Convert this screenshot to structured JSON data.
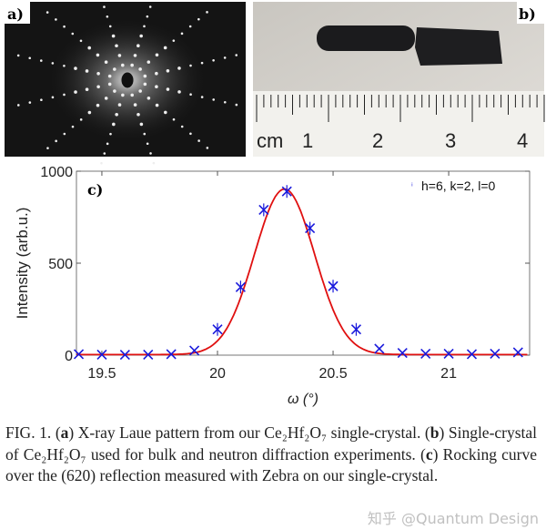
{
  "panels": {
    "a": {
      "label": "a)"
    },
    "b": {
      "label": "b)",
      "ruler_labels": [
        "cm",
        "1",
        "2",
        "3",
        "4"
      ]
    },
    "c": {
      "label": "c)"
    }
  },
  "chart_data": {
    "type": "scatter",
    "xlabel": "ω (°)",
    "ylabel": "Intensity (arb.u.)",
    "xlim": [
      19.39,
      21.35
    ],
    "ylim": [
      0,
      1000
    ],
    "xticks": [
      19.5,
      20,
      20.5,
      21
    ],
    "xtick_labels": [
      "19.5",
      "20",
      "20.5",
      "21"
    ],
    "yticks": [
      0,
      500,
      1000
    ],
    "ytick_labels": [
      "0",
      "500",
      "1000"
    ],
    "legend": {
      "placement": "top-right",
      "entries": [
        "h=6, k=2, l=0"
      ]
    },
    "series": [
      {
        "name": "h=6, k=2, l=0",
        "marker": "x",
        "color": "#1a1adc",
        "x": [
          19.4,
          19.5,
          19.6,
          19.7,
          19.8,
          19.9,
          20.0,
          20.1,
          20.2,
          20.3,
          20.4,
          20.5,
          20.6,
          20.7,
          20.8,
          20.9,
          21.0,
          21.1,
          21.2,
          21.3
        ],
        "y": [
          5,
          3,
          2,
          3,
          5,
          25,
          140,
          370,
          790,
          890,
          690,
          375,
          140,
          35,
          12,
          8,
          8,
          5,
          8,
          15
        ]
      },
      {
        "type": "fit",
        "color": "#e01010",
        "model": "gaussian",
        "center": 20.29,
        "amplitude": 900,
        "sigma": 0.13,
        "baseline": 3
      }
    ],
    "grid": false
  },
  "caption": {
    "fig": "FIG. 1.",
    "a_tag": "a",
    "a_text": "X-ray Laue pattern from our Ce₂Hf₂O₇ single-crystal.",
    "b_tag": "b",
    "b_text": "Single-crystal of Ce₂Hf₂O₇ used for bulk and neutron diffraction experiments.",
    "c_tag": "c",
    "c_text": "Rocking curve over the (620) reflection measured with Zebra on our single-crystal."
  },
  "watermark": "知乎 @Quantum Design"
}
